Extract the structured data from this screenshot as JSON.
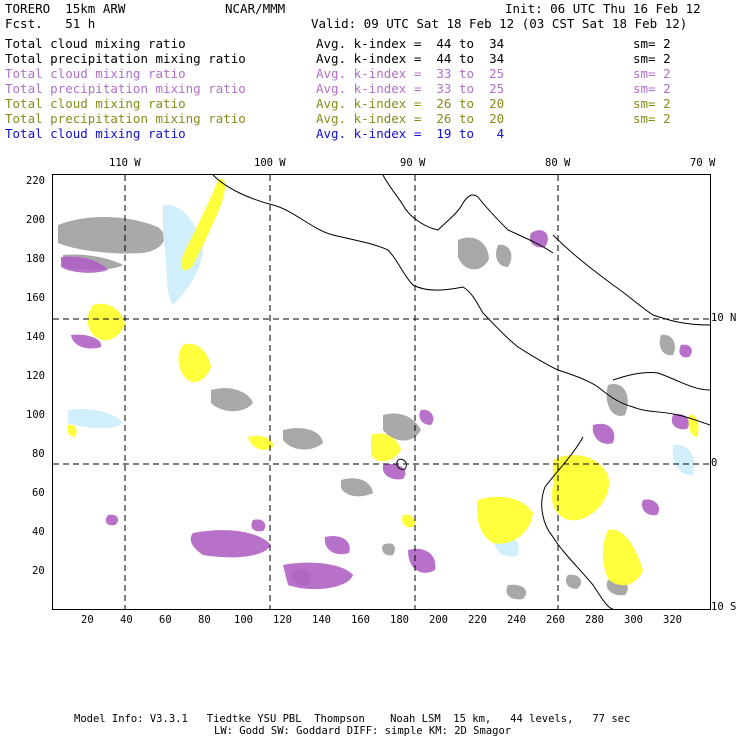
{
  "header": {
    "model": "TORERO  15km ARW",
    "org": "NCAR/MMM",
    "init": "Init: 06 UTC Thu 16 Feb 12",
    "fcst": "Fcst.   51 h",
    "valid": "Valid: 09 UTC Sat 18 Feb 12 (03 CST Sat 18 Feb 12)"
  },
  "legend": [
    {
      "field": "Total cloud mixing ratio",
      "kindex": "Avg. k-index =  44 to  34",
      "sm": "sm= 2",
      "color": "#000000"
    },
    {
      "field": "Total precipitation mixing ratio",
      "kindex": "Avg. k-index =  44 to  34",
      "sm": "sm= 2",
      "color": "#000000"
    },
    {
      "field": "Total cloud mixing ratio",
      "kindex": "Avg. k-index =  33 to  25",
      "sm": "sm= 2",
      "color": "#b070c8"
    },
    {
      "field": "Total precipitation mixing ratio",
      "kindex": "Avg. k-index =  33 to  25",
      "sm": "sm= 2",
      "color": "#b070c8"
    },
    {
      "field": "Total cloud mixing ratio",
      "kindex": "Avg. k-index =  26 to  20",
      "sm": "sm= 2",
      "color": "#8a8a1a"
    },
    {
      "field": "Total precipitation mixing ratio",
      "kindex": "Avg. k-index =  26 to  20",
      "sm": "sm= 2",
      "color": "#8a8a1a"
    },
    {
      "field": "Total cloud mixing ratio",
      "kindex": "Avg. k-index =  19 to   4",
      "sm": "",
      "color": "#1010d0"
    }
  ],
  "axes": {
    "top": [
      "110 W",
      "100 W",
      "90 W",
      "80 W",
      "70 W"
    ],
    "right": [
      "10 N",
      "0",
      "10 S"
    ],
    "left": [
      "220",
      "200",
      "180",
      "160",
      "140",
      "120",
      "100",
      "80",
      "60",
      "40",
      "20"
    ],
    "bottom": [
      "20",
      "40",
      "60",
      "80",
      "100",
      "120",
      "140",
      "160",
      "180",
      "200",
      "220",
      "240",
      "260",
      "280",
      "300",
      "320"
    ]
  },
  "colors": {
    "gray": "#9a9a9a",
    "purple": "#b062c4",
    "yellow": "#ffff33",
    "lightblue": "#cfeefa"
  },
  "footer": {
    "line1": "Model Info: V3.3.1   Tiedtke YSU PBL  Thompson    Noah LSM  15 km,   44 levels,   77 sec",
    "line2": "LW: Godd SW: Goddard DIFF: simple KM: 2D Smagor"
  }
}
